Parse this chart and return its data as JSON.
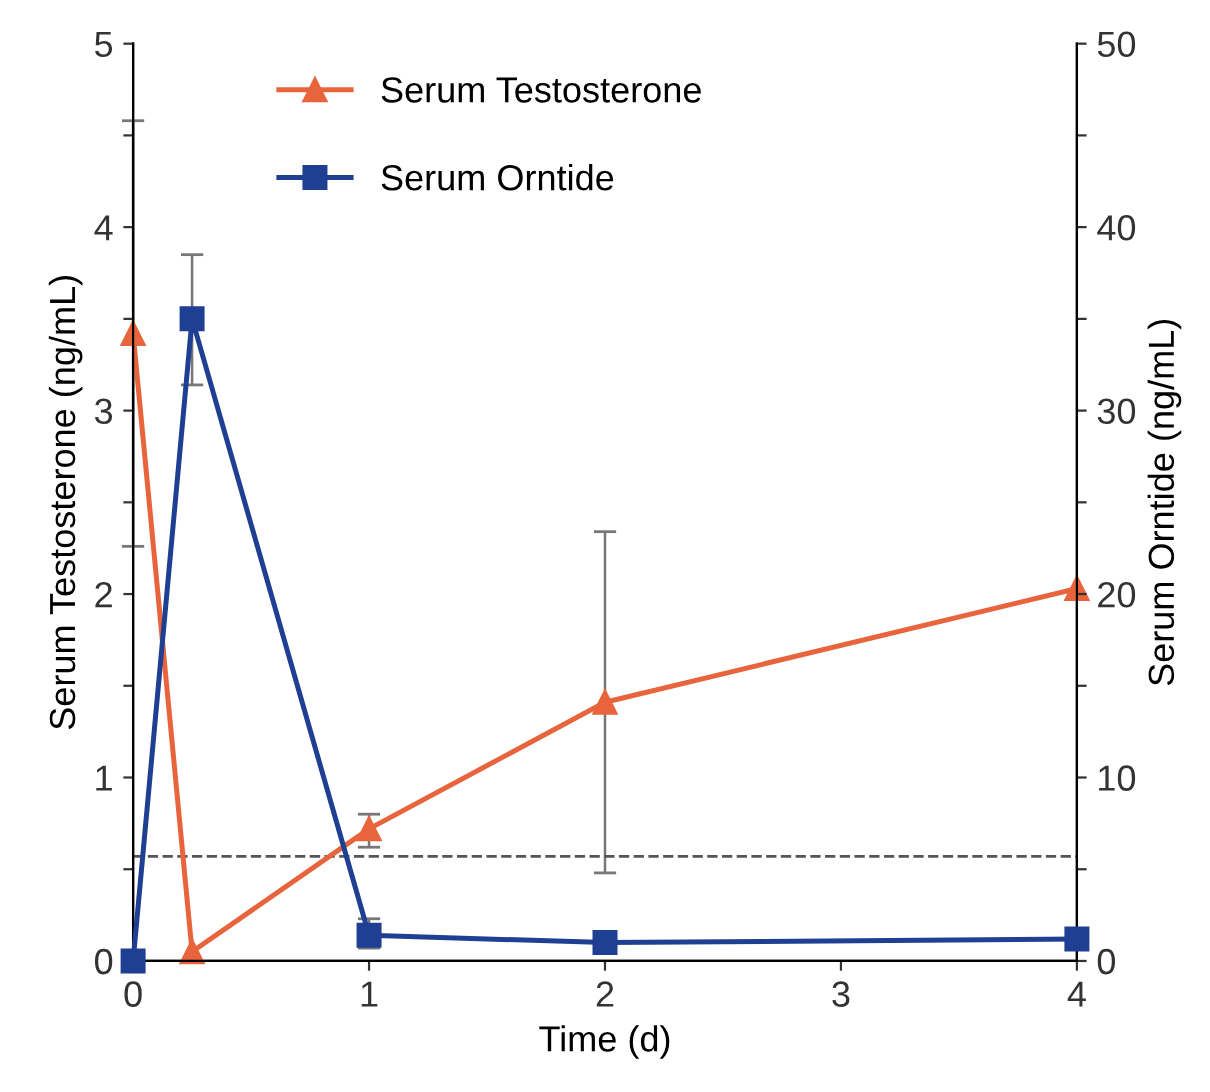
{
  "chart_data": {
    "type": "line",
    "xlabel": "Time (d)",
    "ylabel": "Serum Testosterone (ng/mL)",
    "y2label": "Serum Orntide (ng/mL)",
    "x": [
      0,
      0.25,
      1,
      2,
      4
    ],
    "xlim": [
      0,
      4
    ],
    "xticks": [
      0,
      1,
      2,
      3,
      4
    ],
    "ylim": [
      0,
      5
    ],
    "yticks": [
      0,
      {
        "value": 0.5,
        "label": null
      },
      1,
      {
        "value": 1.5,
        "label": null
      },
      2,
      {
        "value": 2.5,
        "label": null
      },
      3,
      {
        "value": 3.5,
        "label": null
      },
      4,
      {
        "value": 4.5,
        "label": null
      },
      5
    ],
    "y2lim": [
      0,
      50
    ],
    "y2ticks": [
      0,
      {
        "value": 5,
        "label": null
      },
      10,
      {
        "value": 15,
        "label": null
      },
      20,
      {
        "value": 25,
        "label": null
      },
      30,
      {
        "value": 35,
        "label": null
      },
      40,
      {
        "value": 45,
        "label": null
      },
      50
    ],
    "series": [
      {
        "name": "Serum Testosterone",
        "color": "#e8643c",
        "marker": "triangle",
        "values": [
          3.42,
          0.05,
          0.72,
          1.41,
          2.03
        ],
        "errors": [
          1.16,
          null,
          [
            0.62,
            0.8
          ],
          [
            0.48,
            2.34
          ],
          null
        ]
      },
      {
        "name": "Serum Orntide",
        "color": "#1f3f93",
        "marker": "square",
        "axis": "y2",
        "values": [
          0,
          35,
          1.4,
          1.0,
          1.2
        ],
        "errors": [
          null,
          [
            31.4,
            38.5
          ],
          [
            0.7,
            2.3
          ],
          null,
          null
        ]
      }
    ],
    "ref_lines": [
      {
        "axis": "y",
        "value": 0.57,
        "color": "#555555",
        "line_style": "dashed"
      }
    ],
    "legend": "top left",
    "grid": false
  }
}
